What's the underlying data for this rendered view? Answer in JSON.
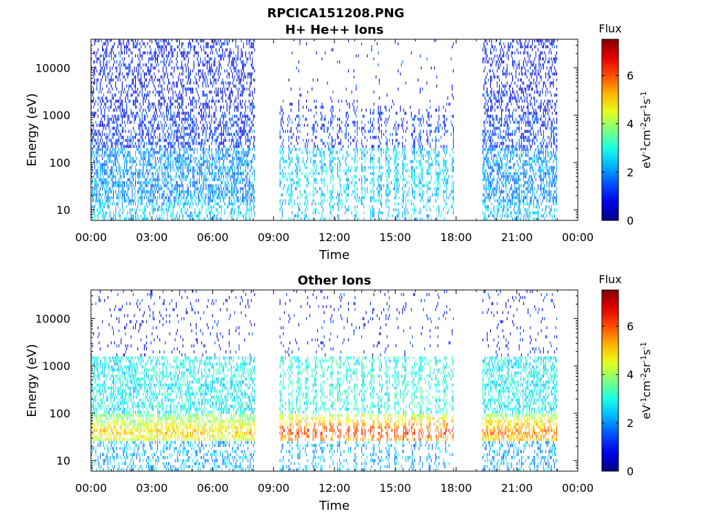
{
  "figure_title": "RPCICA151208.PNG",
  "chart_data": [
    {
      "type": "heatmap",
      "title": "H+ He++ Ions",
      "xlabel": "Time",
      "ylabel": "Energy (eV)",
      "x_tick_labels": [
        "00:00",
        "03:00",
        "06:00",
        "09:00",
        "12:00",
        "15:00",
        "18:00",
        "21:00",
        "00:00"
      ],
      "xlim_hours": [
        0,
        24
      ],
      "y_scale": "log",
      "ylim": [
        6,
        40000
      ],
      "y_tick_values": [
        10,
        100,
        1000,
        10000
      ],
      "y_tick_labels": [
        "10",
        "100",
        "1000",
        "10000"
      ],
      "colorbar": {
        "title": "Flux",
        "label": "eV-1cm-2sr-1s-1",
        "range": [
          0,
          7.5
        ],
        "tick_values": [
          0,
          2,
          4,
          6
        ],
        "tick_labels": [
          "0",
          "2",
          "4",
          "6"
        ],
        "colormap": "jet"
      },
      "data_segments_hours": [
        [
          0.0,
          8.1
        ],
        [
          9.3,
          17.9
        ],
        [
          19.3,
          23.0
        ]
      ],
      "typical_flux": {
        "segment_1": {
          "high_energy_above_1000eV": 1.0,
          "low_energy_20_to_200eV": 2.0
        },
        "segment_2": {
          "high_energy_above_1000eV": 1.0,
          "low_energy_20_to_200eV": 2.5
        },
        "segment_3": {
          "high_energy_above_1000eV": 1.0,
          "low_energy_20_to_200eV": 2.0
        }
      }
    },
    {
      "type": "heatmap",
      "title": "Other Ions",
      "xlabel": "Time",
      "ylabel": "Energy (eV)",
      "x_tick_labels": [
        "00:00",
        "03:00",
        "06:00",
        "09:00",
        "12:00",
        "15:00",
        "18:00",
        "21:00",
        "00:00"
      ],
      "xlim_hours": [
        0,
        24
      ],
      "y_scale": "log",
      "ylim": [
        6,
        40000
      ],
      "y_tick_values": [
        10,
        100,
        1000,
        10000
      ],
      "y_tick_labels": [
        "10",
        "100",
        "1000",
        "10000"
      ],
      "colorbar": {
        "title": "Flux",
        "label": "eV-1cm-2sr-1s-1",
        "range": [
          0,
          7.5
        ],
        "tick_values": [
          0,
          2,
          4,
          6
        ],
        "tick_labels": [
          "0",
          "2",
          "4",
          "6"
        ],
        "colormap": "jet"
      },
      "data_segments_hours": [
        [
          0.0,
          8.1
        ],
        [
          9.3,
          17.9
        ],
        [
          19.3,
          23.0
        ]
      ],
      "typical_flux": {
        "segment_1": {
          "high_energy_above_1000eV": 1.0,
          "mid_energy_100_to_1000eV": 2.8,
          "peak_near_40eV": 5.0
        },
        "segment_2": {
          "high_energy_above_1000eV": 1.0,
          "mid_energy_100_to_1000eV": 3.0,
          "peak_near_40eV": 6.2
        },
        "segment_3": {
          "high_energy_above_1000eV": 1.0,
          "mid_energy_100_to_1000eV": 2.8,
          "peak_near_40eV": 5.8
        }
      }
    }
  ]
}
